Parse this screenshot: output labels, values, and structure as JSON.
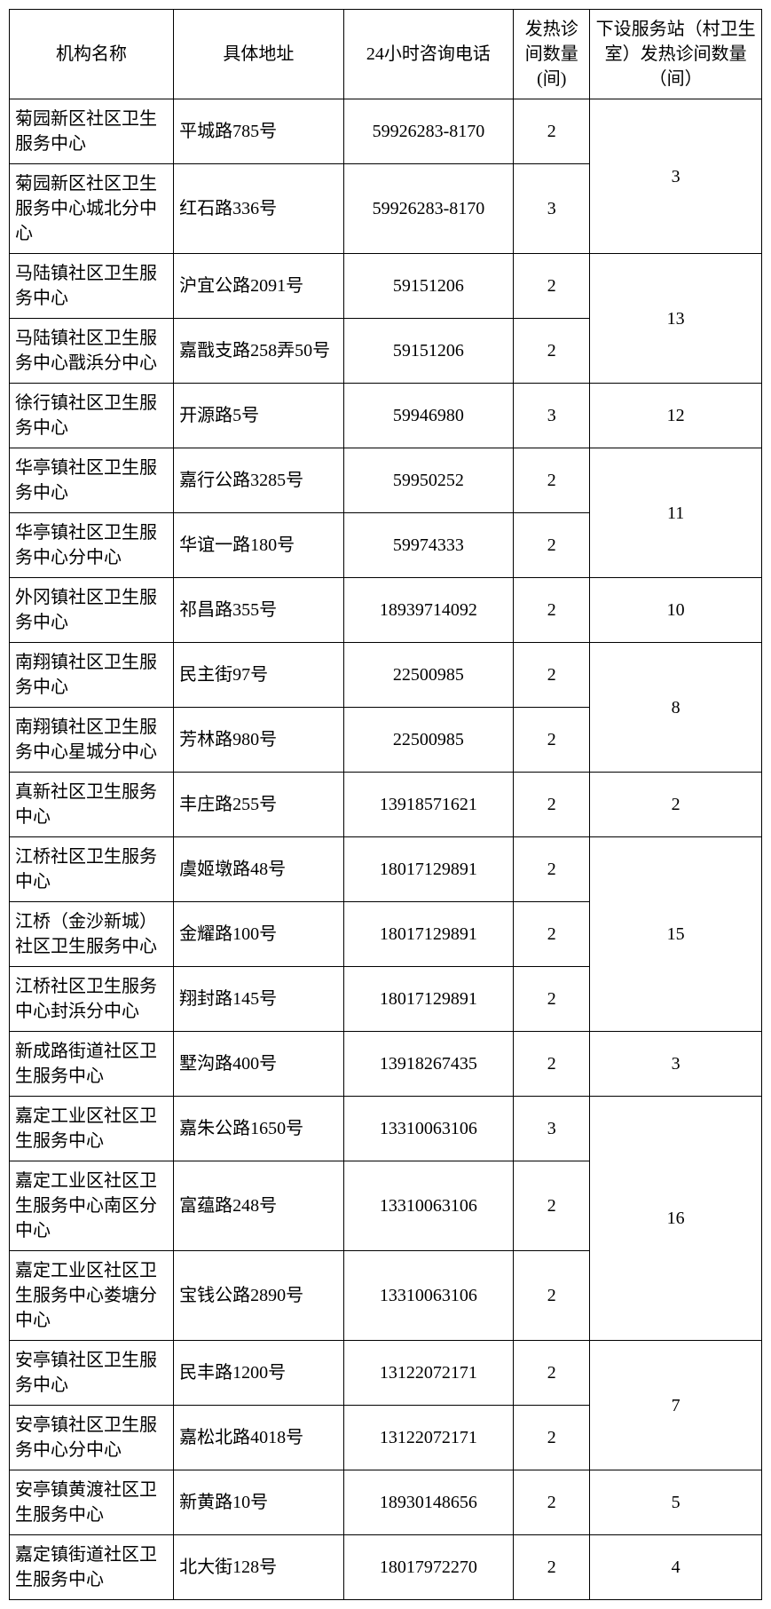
{
  "table": {
    "headers": {
      "name": "机构名称",
      "address": "具体地址",
      "phone": "24小时咨询电话",
      "rooms": "发热诊间数量(间)",
      "stations": "下设服务站（村卫生室）发热诊间数量（间）"
    },
    "rows": [
      {
        "name": "菊园新区社区卫生服务中心",
        "address": "平城路785号",
        "phone": "59926283-8170",
        "rooms": "2",
        "stations": "3",
        "span": 2
      },
      {
        "name": "菊园新区社区卫生服务中心城北分中心",
        "address": "红石路336号",
        "phone": "59926283-8170",
        "rooms": "3"
      },
      {
        "name": "马陆镇社区卫生服务中心",
        "address": "沪宜公路2091号",
        "phone": "59151206",
        "rooms": "2",
        "stations": "13",
        "span": 2
      },
      {
        "name": "马陆镇社区卫生服务中心戬浜分中心",
        "address": "嘉戬支路258弄50号",
        "phone": "59151206",
        "rooms": "2"
      },
      {
        "name": "徐行镇社区卫生服务中心",
        "address": "开源路5号",
        "phone": "59946980",
        "rooms": "3",
        "stations": "12",
        "span": 1
      },
      {
        "name": "华亭镇社区卫生服务中心",
        "address": "嘉行公路3285号",
        "phone": "59950252",
        "rooms": "2",
        "stations": "11",
        "span": 2
      },
      {
        "name": "华亭镇社区卫生服务中心分中心",
        "address": "华谊一路180号",
        "phone": "59974333",
        "rooms": "2"
      },
      {
        "name": "外冈镇社区卫生服务中心",
        "address": "祁昌路355号",
        "phone": "18939714092",
        "rooms": "2",
        "stations": "10",
        "span": 1
      },
      {
        "name": "南翔镇社区卫生服务中心",
        "address": "民主街97号",
        "phone": "22500985",
        "rooms": "2",
        "stations": "8",
        "span": 2
      },
      {
        "name": "南翔镇社区卫生服务中心星城分中心",
        "address": "芳林路980号",
        "phone": "22500985",
        "rooms": "2"
      },
      {
        "name": "真新社区卫生服务中心",
        "address": "丰庄路255号",
        "phone": "13918571621",
        "rooms": "2",
        "stations": "2",
        "span": 1
      },
      {
        "name": "江桥社区卫生服务中心",
        "address": "虞姬墩路48号",
        "phone": "18017129891",
        "rooms": "2",
        "stations": "15",
        "span": 3
      },
      {
        "name": "江桥（金沙新城）社区卫生服务中心",
        "address": "金耀路100号",
        "phone": "18017129891",
        "rooms": "2"
      },
      {
        "name": "江桥社区卫生服务中心封浜分中心",
        "address": "翔封路145号",
        "phone": "18017129891",
        "rooms": "2"
      },
      {
        "name": "新成路街道社区卫生服务中心",
        "address": "墅沟路400号",
        "phone": "13918267435",
        "rooms": "2",
        "stations": "3",
        "span": 1
      },
      {
        "name": "嘉定工业区社区卫生服务中心",
        "address": "嘉朱公路1650号",
        "phone": "13310063106",
        "rooms": "3",
        "stations": "16",
        "span": 3
      },
      {
        "name": "嘉定工业区社区卫生服务中心南区分中心",
        "address": "富蕴路248号",
        "phone": "13310063106",
        "rooms": "2"
      },
      {
        "name": "嘉定工业区社区卫生服务中心娄塘分中心",
        "address": "宝钱公路2890号",
        "phone": "13310063106",
        "rooms": "2"
      },
      {
        "name": "安亭镇社区卫生服务中心",
        "address": "民丰路1200号",
        "phone": "13122072171",
        "rooms": "2",
        "stations": "7",
        "span": 2
      },
      {
        "name": "安亭镇社区卫生服务中心分中心",
        "address": "嘉松北路4018号",
        "phone": "13122072171",
        "rooms": "2"
      },
      {
        "name": "安亭镇黄渡社区卫生服务中心",
        "address": "新黄路10号",
        "phone": "18930148656",
        "rooms": "2",
        "stations": "5",
        "span": 1
      },
      {
        "name": "嘉定镇街道社区卫生服务中心",
        "address": "北大街128号",
        "phone": "18017972270",
        "rooms": "2",
        "stations": "4",
        "span": 1
      }
    ]
  }
}
